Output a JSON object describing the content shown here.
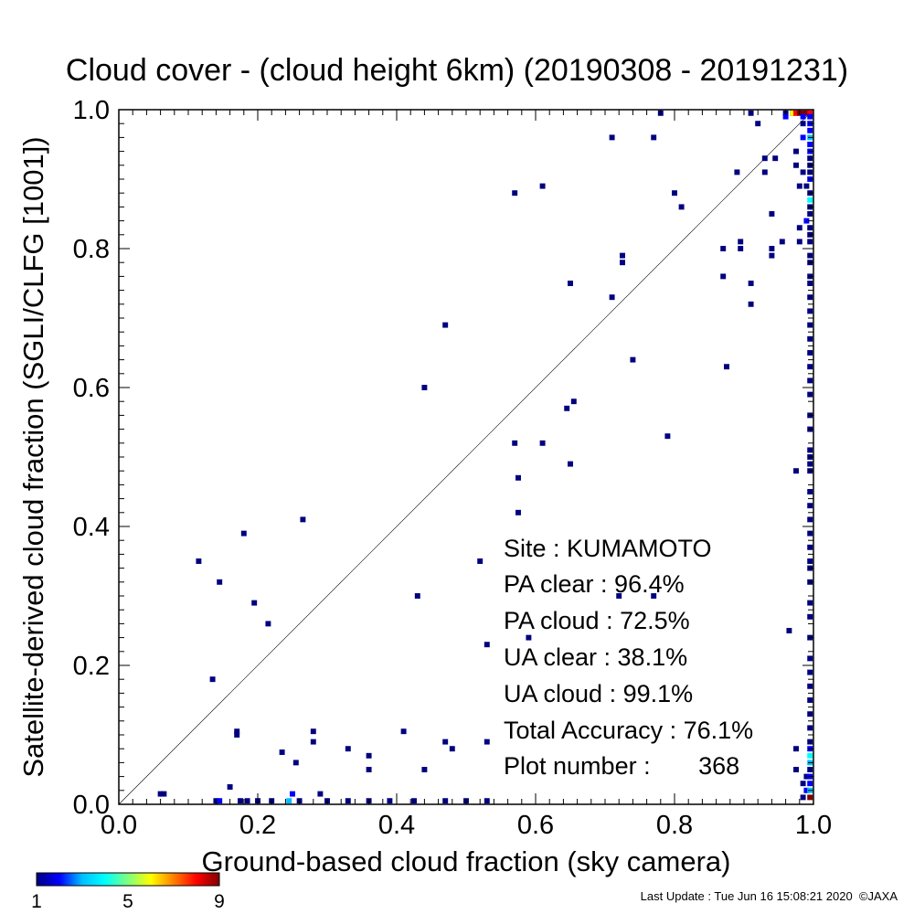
{
  "chart_data": {
    "type": "heatmap",
    "title": "Cloud cover - (cloud height 6km)  (20190308 - 20191231)",
    "xlabel": "Ground-based cloud fraction (sky camera)",
    "ylabel": "Satellite-derived cloud fraction (SGLI/CLFG [1001])",
    "xlim": [
      0,
      1
    ],
    "ylim": [
      0,
      1
    ],
    "xticks": [
      "0.0",
      "0.2",
      "0.4",
      "0.6",
      "0.8",
      "1.0"
    ],
    "yticks": [
      "0.0",
      "0.2",
      "0.4",
      "0.6",
      "0.8",
      "1.0"
    ],
    "grid": false,
    "diagonal_reference_line": true,
    "bin_size": 0.01,
    "colorbar": {
      "labels": [
        "1",
        "5",
        "9"
      ],
      "range": [
        1,
        9
      ],
      "colors": [
        "#00007f",
        "#0000ff",
        "#00bfff",
        "#00ffff",
        "#7fff7f",
        "#ffff00",
        "#ff7f00",
        "#ff0000",
        "#7f0000"
      ]
    },
    "stats": {
      "site": "Site : KUMAMOTO",
      "pa_clear": "PA clear :  96.4%",
      "pa_cloud": "PA cloud :  72.5%",
      "ua_clear": "UA clear :  38.1%",
      "ua_cloud": "UA cloud :  99.1%",
      "total_accuracy": "Total Accuracy :  76.1%",
      "plot_number": "Plot number :       368"
    },
    "points": [
      {
        "x": 0.06,
        "y": 0.01,
        "c": 1
      },
      {
        "x": 0.065,
        "y": 0.01,
        "c": 1
      },
      {
        "x": 0.14,
        "y": 0.0,
        "c": 1
      },
      {
        "x": 0.145,
        "y": 0.0,
        "c": 2
      },
      {
        "x": 0.16,
        "y": 0.02,
        "c": 1
      },
      {
        "x": 0.175,
        "y": 0.0,
        "c": 1
      },
      {
        "x": 0.185,
        "y": 0.0,
        "c": 1
      },
      {
        "x": 0.2,
        "y": 0.0,
        "c": 1
      },
      {
        "x": 0.22,
        "y": 0.0,
        "c": 1
      },
      {
        "x": 0.245,
        "y": 0.0,
        "c": 3
      },
      {
        "x": 0.25,
        "y": 0.01,
        "c": 2
      },
      {
        "x": 0.26,
        "y": 0.0,
        "c": 1
      },
      {
        "x": 0.29,
        "y": 0.01,
        "c": 1
      },
      {
        "x": 0.3,
        "y": 0.0,
        "c": 1
      },
      {
        "x": 0.33,
        "y": 0.0,
        "c": 1
      },
      {
        "x": 0.36,
        "y": 0.0,
        "c": 1
      },
      {
        "x": 0.39,
        "y": 0.0,
        "c": 1
      },
      {
        "x": 0.425,
        "y": 0.0,
        "c": 1
      },
      {
        "x": 0.47,
        "y": 0.0,
        "c": 1
      },
      {
        "x": 0.5,
        "y": 0.0,
        "c": 1
      },
      {
        "x": 0.53,
        "y": 0.0,
        "c": 1
      },
      {
        "x": 0.17,
        "y": 0.1,
        "c": 1
      },
      {
        "x": 0.17,
        "y": 0.095,
        "c": 1
      },
      {
        "x": 0.235,
        "y": 0.07,
        "c": 1
      },
      {
        "x": 0.255,
        "y": 0.055,
        "c": 1
      },
      {
        "x": 0.28,
        "y": 0.1,
        "c": 1
      },
      {
        "x": 0.28,
        "y": 0.085,
        "c": 1
      },
      {
        "x": 0.33,
        "y": 0.075,
        "c": 1
      },
      {
        "x": 0.36,
        "y": 0.065,
        "c": 1
      },
      {
        "x": 0.36,
        "y": 0.045,
        "c": 1
      },
      {
        "x": 0.41,
        "y": 0.1,
        "c": 1
      },
      {
        "x": 0.44,
        "y": 0.045,
        "c": 1
      },
      {
        "x": 0.47,
        "y": 0.085,
        "c": 1
      },
      {
        "x": 0.48,
        "y": 0.075,
        "c": 1
      },
      {
        "x": 0.53,
        "y": 0.085,
        "c": 1
      },
      {
        "x": 0.135,
        "y": 0.175,
        "c": 1
      },
      {
        "x": 0.195,
        "y": 0.285,
        "c": 1
      },
      {
        "x": 0.215,
        "y": 0.255,
        "c": 1
      },
      {
        "x": 0.115,
        "y": 0.345,
        "c": 1
      },
      {
        "x": 0.145,
        "y": 0.315,
        "c": 1
      },
      {
        "x": 0.18,
        "y": 0.385,
        "c": 1
      },
      {
        "x": 0.265,
        "y": 0.405,
        "c": 1
      },
      {
        "x": 0.43,
        "y": 0.295,
        "c": 1
      },
      {
        "x": 0.52,
        "y": 0.345,
        "c": 1
      },
      {
        "x": 0.53,
        "y": 0.225,
        "c": 1
      },
      {
        "x": 0.44,
        "y": 0.595,
        "c": 1
      },
      {
        "x": 0.47,
        "y": 0.685,
        "c": 1
      },
      {
        "x": 0.57,
        "y": 0.515,
        "c": 1
      },
      {
        "x": 0.575,
        "y": 0.465,
        "c": 1
      },
      {
        "x": 0.575,
        "y": 0.415,
        "c": 1
      },
      {
        "x": 0.57,
        "y": 0.875,
        "c": 1
      },
      {
        "x": 0.61,
        "y": 0.515,
        "c": 1
      },
      {
        "x": 0.61,
        "y": 0.885,
        "c": 1
      },
      {
        "x": 0.65,
        "y": 0.485,
        "c": 1
      },
      {
        "x": 0.645,
        "y": 0.565,
        "c": 1
      },
      {
        "x": 0.655,
        "y": 0.575,
        "c": 1
      },
      {
        "x": 0.65,
        "y": 0.745,
        "c": 1
      },
      {
        "x": 0.71,
        "y": 0.955,
        "c": 1
      },
      {
        "x": 0.71,
        "y": 0.725,
        "c": 1
      },
      {
        "x": 0.725,
        "y": 0.775,
        "c": 1
      },
      {
        "x": 0.725,
        "y": 0.785,
        "c": 1
      },
      {
        "x": 0.74,
        "y": 0.635,
        "c": 1
      },
      {
        "x": 0.77,
        "y": 0.955,
        "c": 1
      },
      {
        "x": 0.78,
        "y": 0.995,
        "c": 1
      },
      {
        "x": 0.79,
        "y": 0.525,
        "c": 1
      },
      {
        "x": 0.8,
        "y": 0.875,
        "c": 1
      },
      {
        "x": 0.81,
        "y": 0.855,
        "c": 1
      },
      {
        "x": 0.72,
        "y": 0.295,
        "c": 1
      },
      {
        "x": 0.77,
        "y": 0.295,
        "c": 1
      },
      {
        "x": 0.59,
        "y": 0.235,
        "c": 1
      },
      {
        "x": 0.87,
        "y": 0.795,
        "c": 1
      },
      {
        "x": 0.87,
        "y": 0.755,
        "c": 1
      },
      {
        "x": 0.875,
        "y": 0.625,
        "c": 1
      },
      {
        "x": 0.89,
        "y": 0.905,
        "c": 1
      },
      {
        "x": 0.895,
        "y": 0.795,
        "c": 1
      },
      {
        "x": 0.895,
        "y": 0.805,
        "c": 1
      },
      {
        "x": 0.91,
        "y": 0.745,
        "c": 1
      },
      {
        "x": 0.91,
        "y": 0.715,
        "c": 1
      },
      {
        "x": 0.91,
        "y": 0.995,
        "c": 1
      },
      {
        "x": 0.92,
        "y": 0.975,
        "c": 1
      },
      {
        "x": 0.93,
        "y": 0.925,
        "c": 1
      },
      {
        "x": 0.93,
        "y": 0.905,
        "c": 1
      },
      {
        "x": 0.94,
        "y": 0.845,
        "c": 1
      },
      {
        "x": 0.94,
        "y": 0.785,
        "c": 1
      },
      {
        "x": 0.94,
        "y": 0.795,
        "c": 1
      },
      {
        "x": 0.945,
        "y": 0.925,
        "c": 1
      },
      {
        "x": 0.955,
        "y": 0.805,
        "c": 1
      },
      {
        "x": 0.96,
        "y": 0.995,
        "c": 1
      },
      {
        "x": 0.97,
        "y": 0.995,
        "c": 1
      },
      {
        "x": 0.96,
        "y": 0.985,
        "c": 2
      },
      {
        "x": 0.965,
        "y": 0.245,
        "c": 1
      },
      {
        "x": 0.975,
        "y": 0.475,
        "c": 1
      },
      {
        "x": 0.975,
        "y": 0.935,
        "c": 1
      },
      {
        "x": 0.975,
        "y": 0.915,
        "c": 1
      },
      {
        "x": 0.98,
        "y": 0.825,
        "c": 1
      },
      {
        "x": 0.98,
        "y": 0.805,
        "c": 1
      },
      {
        "x": 0.98,
        "y": 0.885,
        "c": 1
      },
      {
        "x": 0.985,
        "y": 0.905,
        "c": 1
      },
      {
        "x": 0.975,
        "y": 0.075,
        "c": 1
      },
      {
        "x": 0.975,
        "y": 0.045,
        "c": 1
      },
      {
        "x": 0.97,
        "y": 0.995,
        "c": 6
      },
      {
        "x": 0.975,
        "y": 0.995,
        "c": 8
      },
      {
        "x": 0.98,
        "y": 0.995,
        "c": 9
      },
      {
        "x": 0.985,
        "y": 0.995,
        "c": 9
      },
      {
        "x": 0.99,
        "y": 0.995,
        "c": 9
      },
      {
        "x": 0.995,
        "y": 0.995,
        "c": 8
      },
      {
        "x": 0.985,
        "y": 0.985,
        "c": 2
      },
      {
        "x": 0.995,
        "y": 0.985,
        "c": 2
      },
      {
        "x": 0.985,
        "y": 0.975,
        "c": 1
      },
      {
        "x": 0.995,
        "y": 0.975,
        "c": 2
      },
      {
        "x": 0.995,
        "y": 0.965,
        "c": 2
      },
      {
        "x": 0.985,
        "y": 0.955,
        "c": 2
      },
      {
        "x": 0.995,
        "y": 0.955,
        "c": 3
      },
      {
        "x": 0.995,
        "y": 0.945,
        "c": 2
      },
      {
        "x": 0.995,
        "y": 0.935,
        "c": 2
      },
      {
        "x": 0.995,
        "y": 0.925,
        "c": 1
      },
      {
        "x": 0.995,
        "y": 0.915,
        "c": 1
      },
      {
        "x": 0.995,
        "y": 0.905,
        "c": 1
      },
      {
        "x": 0.995,
        "y": 0.895,
        "c": 2
      },
      {
        "x": 0.99,
        "y": 0.885,
        "c": 1
      },
      {
        "x": 0.995,
        "y": 0.875,
        "c": 1
      },
      {
        "x": 0.995,
        "y": 0.865,
        "c": 4
      },
      {
        "x": 0.995,
        "y": 0.855,
        "c": 1
      },
      {
        "x": 0.995,
        "y": 0.845,
        "c": 1
      },
      {
        "x": 0.99,
        "y": 0.835,
        "c": 2
      },
      {
        "x": 0.995,
        "y": 0.825,
        "c": 1
      },
      {
        "x": 0.995,
        "y": 0.815,
        "c": 1
      },
      {
        "x": 0.995,
        "y": 0.805,
        "c": 1
      },
      {
        "x": 0.995,
        "y": 0.785,
        "c": 1
      },
      {
        "x": 0.995,
        "y": 0.775,
        "c": 1
      },
      {
        "x": 0.995,
        "y": 0.755,
        "c": 1
      },
      {
        "x": 0.995,
        "y": 0.745,
        "c": 1
      },
      {
        "x": 0.995,
        "y": 0.725,
        "c": 1
      },
      {
        "x": 0.995,
        "y": 0.705,
        "c": 1
      },
      {
        "x": 0.995,
        "y": 0.685,
        "c": 1
      },
      {
        "x": 0.995,
        "y": 0.665,
        "c": 1
      },
      {
        "x": 0.995,
        "y": 0.645,
        "c": 1
      },
      {
        "x": 0.995,
        "y": 0.625,
        "c": 1
      },
      {
        "x": 0.995,
        "y": 0.605,
        "c": 1
      },
      {
        "x": 0.995,
        "y": 0.585,
        "c": 1
      },
      {
        "x": 0.995,
        "y": 0.555,
        "c": 1
      },
      {
        "x": 0.995,
        "y": 0.535,
        "c": 1
      },
      {
        "x": 0.995,
        "y": 0.505,
        "c": 1
      },
      {
        "x": 0.995,
        "y": 0.495,
        "c": 1
      },
      {
        "x": 0.995,
        "y": 0.485,
        "c": 1
      },
      {
        "x": 0.995,
        "y": 0.475,
        "c": 1
      },
      {
        "x": 0.995,
        "y": 0.445,
        "c": 1
      },
      {
        "x": 0.995,
        "y": 0.425,
        "c": 1
      },
      {
        "x": 0.995,
        "y": 0.405,
        "c": 1
      },
      {
        "x": 0.995,
        "y": 0.385,
        "c": 1
      },
      {
        "x": 0.995,
        "y": 0.365,
        "c": 1
      },
      {
        "x": 0.995,
        "y": 0.345,
        "c": 1
      },
      {
        "x": 0.995,
        "y": 0.335,
        "c": 1
      },
      {
        "x": 0.995,
        "y": 0.315,
        "c": 1
      },
      {
        "x": 0.995,
        "y": 0.285,
        "c": 1
      },
      {
        "x": 0.995,
        "y": 0.265,
        "c": 1
      },
      {
        "x": 0.995,
        "y": 0.235,
        "c": 1
      },
      {
        "x": 0.995,
        "y": 0.205,
        "c": 1
      },
      {
        "x": 0.995,
        "y": 0.185,
        "c": 1
      },
      {
        "x": 0.995,
        "y": 0.165,
        "c": 1
      },
      {
        "x": 0.995,
        "y": 0.145,
        "c": 1
      },
      {
        "x": 0.995,
        "y": 0.125,
        "c": 1
      },
      {
        "x": 0.995,
        "y": 0.105,
        "c": 1
      },
      {
        "x": 0.995,
        "y": 0.085,
        "c": 1
      },
      {
        "x": 0.995,
        "y": 0.075,
        "c": 2
      },
      {
        "x": 0.995,
        "y": 0.065,
        "c": 4
      },
      {
        "x": 0.995,
        "y": 0.055,
        "c": 3
      },
      {
        "x": 0.995,
        "y": 0.045,
        "c": 1
      },
      {
        "x": 0.99,
        "y": 0.035,
        "c": 1
      },
      {
        "x": 0.995,
        "y": 0.035,
        "c": 2
      },
      {
        "x": 0.985,
        "y": 0.025,
        "c": 1
      },
      {
        "x": 0.995,
        "y": 0.025,
        "c": 2
      },
      {
        "x": 0.99,
        "y": 0.015,
        "c": 2
      },
      {
        "x": 0.995,
        "y": 0.015,
        "c": 3
      },
      {
        "x": 0.985,
        "y": 0.005,
        "c": 1
      },
      {
        "x": 0.995,
        "y": 0.005,
        "c": 9
      }
    ]
  },
  "footer": {
    "last_update": "Last Update : Tue Jun 16 15:08:21 2020  ©JAXA"
  }
}
